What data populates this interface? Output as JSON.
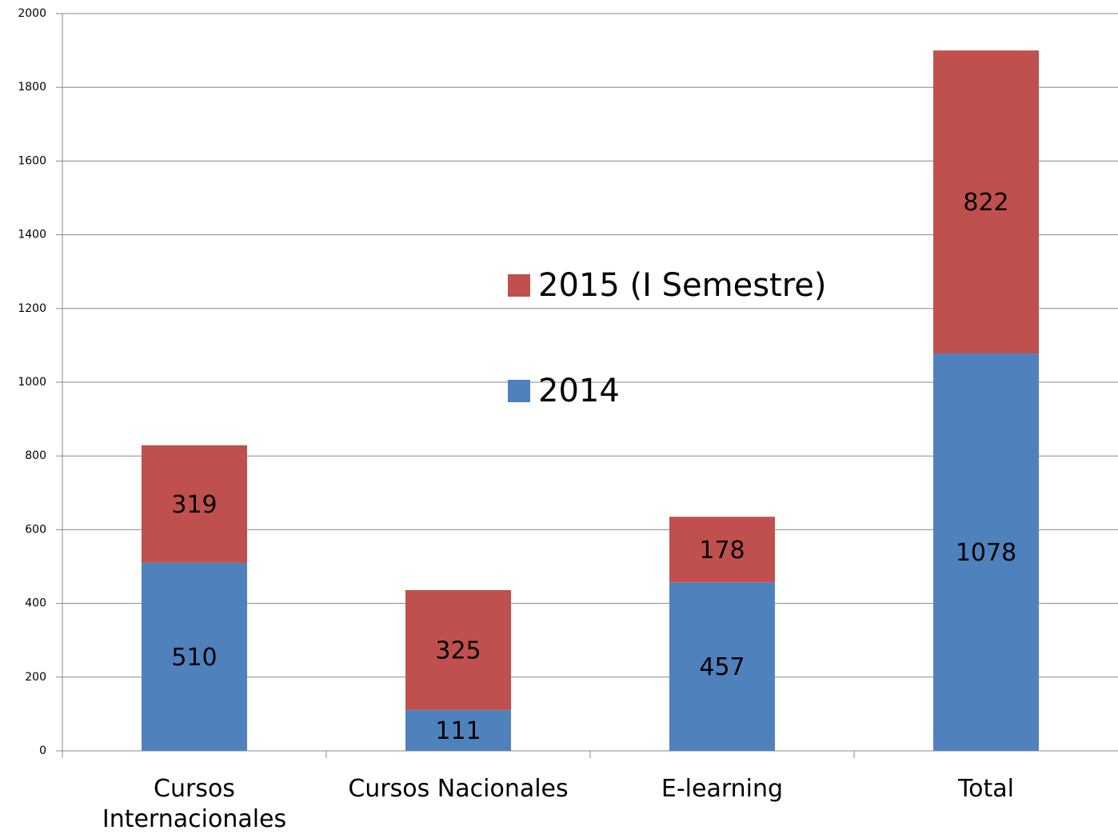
{
  "chart_data": {
    "type": "stacked_bar",
    "categories": [
      "Cursos Internacionales",
      "Cursos Nacionales",
      "E-learning",
      "Total"
    ],
    "series": [
      {
        "name": "2014",
        "color": "#4f81bd",
        "values": [
          510,
          111,
          457,
          1078
        ]
      },
      {
        "name": "2015 (I Semestre)",
        "color": "#c0504d",
        "values": [
          319,
          325,
          178,
          822
        ]
      }
    ],
    "ylim": [
      0,
      2000
    ],
    "yticks": [
      0,
      200,
      400,
      600,
      800,
      1000,
      1200,
      1400,
      1600,
      1800,
      2000
    ],
    "grid": true,
    "legend_position": "center"
  }
}
